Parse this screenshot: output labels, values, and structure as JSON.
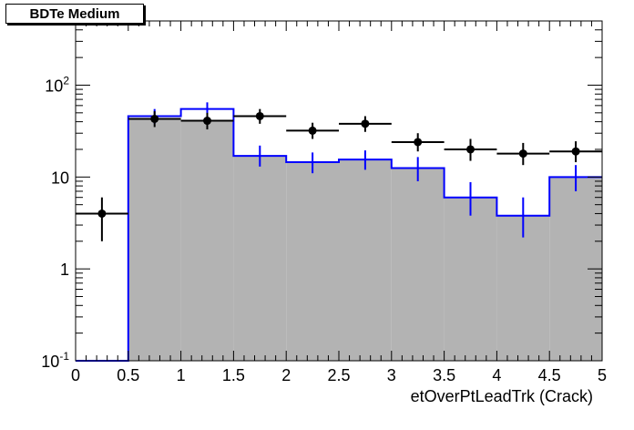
{
  "chart_data": {
    "type": "histogram",
    "title": "BDTe Medium",
    "xlabel": "etOverPtLeadTrk (Crack)",
    "ylabel": "",
    "xlim": [
      0,
      5
    ],
    "ylim": [
      0.1,
      500
    ],
    "yscale": "log",
    "grid": false,
    "bin_edges": [
      0,
      0.5,
      1,
      1.5,
      2,
      2.5,
      3,
      3.5,
      4,
      4.5,
      5
    ],
    "x_ticks": [
      "0",
      "0.5",
      "1",
      "1.5",
      "2",
      "2.5",
      "3",
      "3.5",
      "4",
      "4.5",
      "5"
    ],
    "y_ticks": [
      {
        "value": 0.1,
        "base": "10",
        "exp": "-1"
      },
      {
        "value": 1,
        "base": "1",
        "exp": ""
      },
      {
        "value": 10,
        "base": "10",
        "exp": ""
      },
      {
        "value": 100,
        "base": "10",
        "exp": "2"
      }
    ],
    "series": [
      {
        "style": "filled-histogram",
        "fill": "#b3b3b3",
        "values": [
          0.1,
          43,
          41,
          17,
          14.5,
          15.5,
          12.5,
          6,
          3.8,
          10
        ],
        "err_low": [
          0,
          7,
          7,
          4,
          3.5,
          3.5,
          3.5,
          2.2,
          1.6,
          3
        ],
        "err_high": [
          0,
          7,
          8,
          5,
          4,
          4,
          4,
          2.8,
          2.2,
          3.5
        ]
      },
      {
        "style": "step-with-errors",
        "color": "#0000ff",
        "values": [
          0.1,
          46,
          55,
          17,
          14.5,
          15.5,
          12.5,
          6,
          3.8,
          10
        ],
        "err_low": [
          0,
          8,
          9,
          4,
          3.5,
          3.5,
          3.5,
          2.2,
          1.6,
          3
        ],
        "err_high": [
          0,
          9,
          10,
          5,
          4,
          4,
          4,
          2.8,
          2.2,
          3.5
        ]
      },
      {
        "style": "points-with-errors",
        "color": "#000000",
        "values": [
          4,
          43,
          41,
          46,
          32,
          38,
          24,
          20,
          18,
          19
        ],
        "err_low": [
          2,
          8,
          8,
          8,
          6,
          7,
          5,
          5,
          4.5,
          4.5
        ],
        "err_high": [
          2,
          9,
          9,
          9,
          7,
          8,
          6,
          6,
          5.5,
          5.5
        ]
      }
    ]
  }
}
